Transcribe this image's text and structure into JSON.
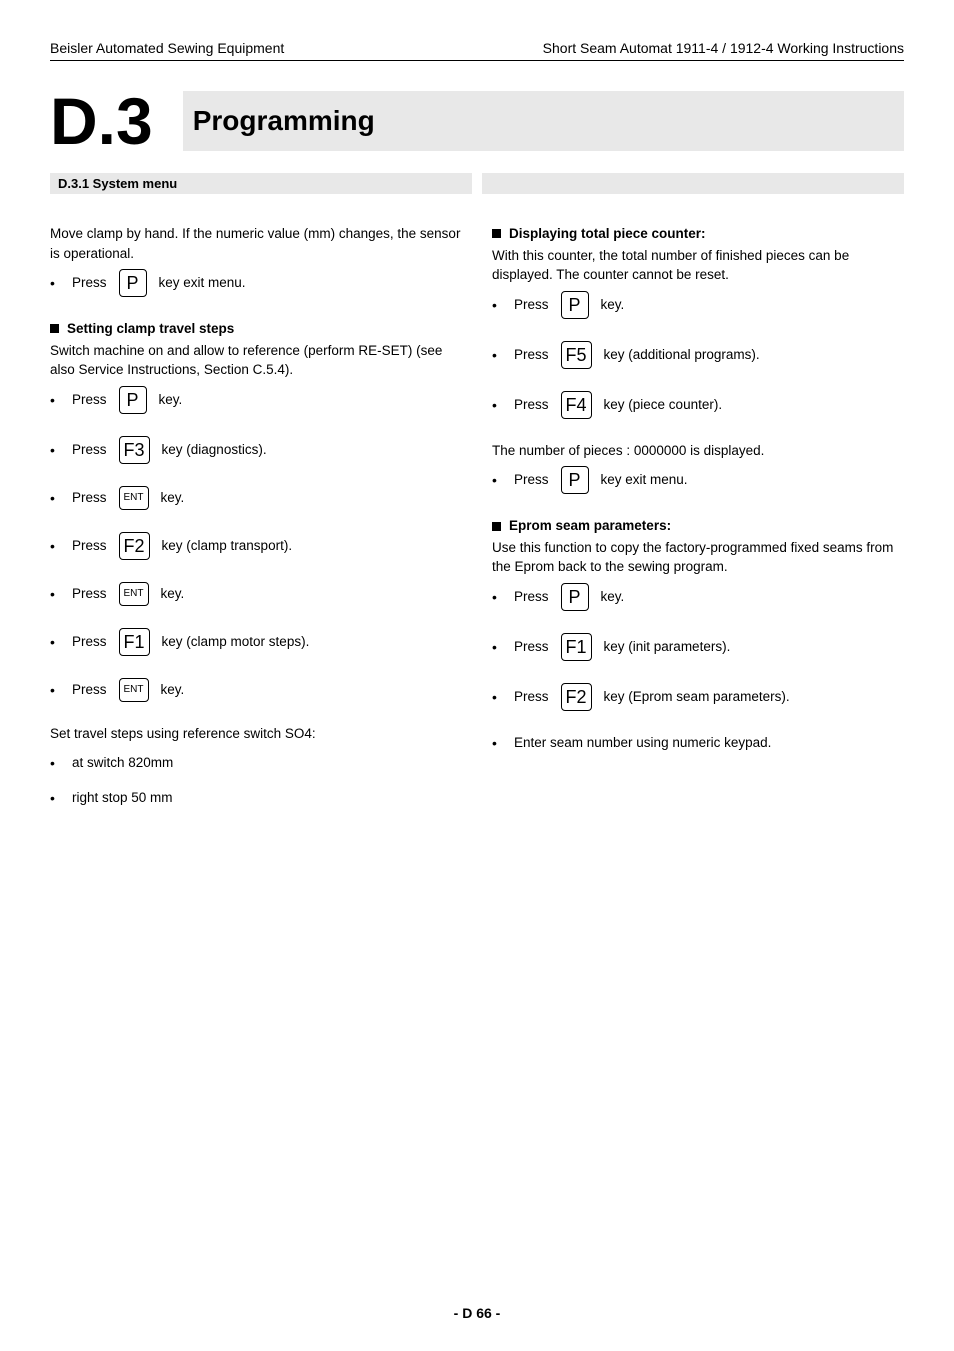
{
  "header": {
    "left": "Beisler Automated Sewing Equipment",
    "right": "Short Seam Automat 1911-4 / 1912-4 Working Instructions"
  },
  "chapter": {
    "num": "D.3",
    "title": "Programming"
  },
  "section": "D.3.1 System menu",
  "left_col": {
    "intro": "Move clamp by hand. If the numeric value (mm) changes, the sensor is operational.",
    "step_exit_pre": "Press",
    "step_exit_key": "P",
    "step_exit_post": "key exit menu.",
    "h1": "Setting clamp travel steps",
    "h1_desc": "Switch machine on and allow to reference (perform RE-SET) (see also Service Instructions, Section C.5.4).",
    "s1_pre": "Press",
    "s1_key": "P",
    "s1_post": "key.",
    "s2_pre": "Press",
    "s2_key": "F3",
    "s2_post": "key (diagnostics).",
    "s3_pre": "Press",
    "s3_key": "ENT",
    "s3_post": "key.",
    "s4_pre": "Press",
    "s4_key": "F2",
    "s4_post": "key (clamp transport).",
    "s5_pre": "Press",
    "s5_key": "ENT",
    "s5_post": "key.",
    "s6_pre": "Press",
    "s6_key": "F1",
    "s6_post": "key (clamp motor steps).",
    "s7_pre": "Press",
    "s7_key": "ENT",
    "s7_post": "key.",
    "ref_line": "Set travel steps using reference switch SO4:",
    "ref_a": "at switch 820mm",
    "ref_b": "right stop 50 mm"
  },
  "right_col": {
    "h1": "Displaying total piece counter:",
    "h1_desc": "With this counter, the total number of finished pieces can be displayed. The counter cannot be reset.",
    "s1_pre": "Press",
    "s1_key": "P",
    "s1_post": "key.",
    "s2_pre": "Press",
    "s2_key": "F5",
    "s2_post": "key (additional programs).",
    "s3_pre": "Press",
    "s3_key": "F4",
    "s3_post": "key (piece counter).",
    "disp_line": "The number of pieces : 0000000 is displayed.",
    "s4_pre": "Press",
    "s4_key": "P",
    "s4_post": "key exit menu.",
    "h2": "Eprom seam parameters:",
    "h2_desc": "Use this function to copy the factory-programmed fixed seams from the Eprom back to the sewing program.",
    "e1_pre": "Press",
    "e1_key": "P",
    "e1_post": "key.",
    "e2_pre": "Press",
    "e2_key": "F1",
    "e2_post": "key (init parameters).",
    "e3_pre": "Press",
    "e3_key": "F2",
    "e3_post": "key (Eprom seam parameters).",
    "e4": "Enter seam number using numeric keypad."
  },
  "footer": "- D 66 -"
}
